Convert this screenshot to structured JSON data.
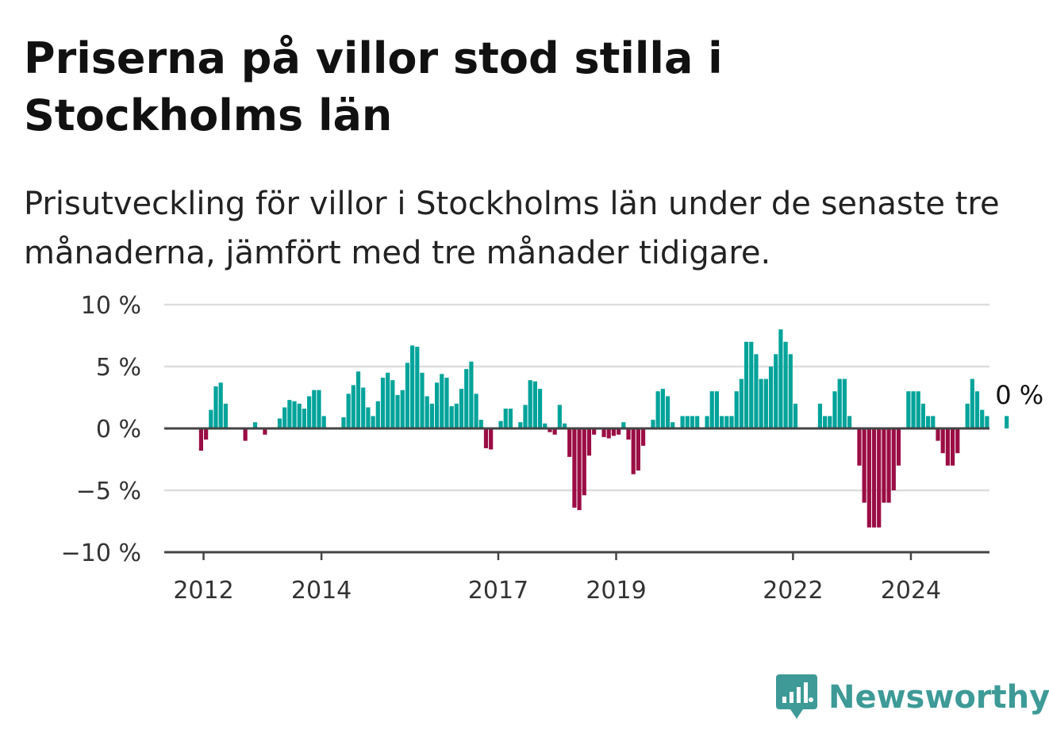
{
  "title": "Priserna på villor stod stilla i Stockholms län",
  "subtitle": "Prisutveckling för villor i Stockholms län under de senaste tre månaderna, jämfört med tre månader tidigare.",
  "brand": {
    "name": "Newsworthy",
    "color": "#3d9a97",
    "icon": "chart-bubble-icon"
  },
  "colors": {
    "positive": "#00a39a",
    "negative": "#9b0d44",
    "grid": "#dddddd",
    "zero_line": "#444444"
  },
  "chart_data": {
    "type": "bar",
    "ylim": [
      -10,
      10
    ],
    "y_ticks": [
      10,
      5,
      0,
      -5,
      -10
    ],
    "y_tick_labels": [
      "10 %",
      "5 %",
      "0 %",
      "−5 %",
      "−10 %"
    ],
    "x_ticks": [
      "2012",
      "2014",
      "2017",
      "2019",
      "2022",
      "2024"
    ],
    "start": "2011-05",
    "end": "2025-05",
    "annotation": "0 %",
    "values": [
      0,
      0,
      0,
      0,
      0,
      0,
      0,
      -1.8,
      -0.9,
      1.5,
      3.4,
      3.7,
      2.0,
      0,
      0,
      0,
      -1.0,
      0,
      0.5,
      0,
      -0.5,
      0,
      0,
      0.8,
      1.7,
      2.3,
      2.2,
      2.0,
      1.6,
      2.6,
      3.1,
      3.1,
      1.0,
      0,
      0,
      0,
      0.9,
      2.8,
      3.5,
      4.6,
      3.3,
      1.7,
      1.0,
      2.2,
      4.1,
      4.5,
      3.9,
      2.7,
      3.1,
      5.3,
      6.7,
      6.6,
      4.5,
      2.6,
      2.0,
      3.7,
      4.4,
      4.1,
      1.8,
      2.0,
      3.2,
      4.8,
      5.4,
      2.8,
      0.7,
      -1.6,
      -1.7,
      0,
      0.6,
      1.6,
      1.6,
      0,
      0.5,
      1.9,
      3.9,
      3.8,
      3.2,
      0.4,
      -0.3,
      -0.5,
      1.9,
      0.4,
      -2.3,
      -6.4,
      -6.6,
      -5.4,
      -2.2,
      -0.5,
      0,
      -0.7,
      -0.8,
      -0.6,
      -0.5,
      0.5,
      -0.9,
      -3.7,
      -3.4,
      -1.4,
      0,
      0.7,
      3.0,
      3.2,
      2.6,
      0.5,
      0,
      1.0,
      1.0,
      1.0,
      1.0,
      0,
      1.0,
      3.0,
      3.0,
      1.0,
      1.0,
      1.0,
      3.0,
      4.0,
      7.0,
      7.0,
      6.0,
      4.0,
      4.0,
      5.0,
      6.0,
      8.0,
      7.0,
      6.0,
      2.0,
      0,
      0,
      0,
      0,
      2.0,
      1.0,
      1.0,
      3.0,
      4.0,
      4.0,
      1.0,
      0,
      -3.0,
      -6.0,
      -8.0,
      -8.0,
      -8.0,
      -6.0,
      -6.0,
      -5.0,
      -3.0,
      0,
      3.0,
      3.0,
      3.0,
      2.0,
      1.0,
      1.0,
      -1.0,
      -2.0,
      -3.0,
      -3.0,
      -2.0,
      0,
      2.0,
      4.0,
      3.0,
      1.5,
      1.0,
      0,
      0,
      0,
      1.0,
      0,
      0,
      0,
      0,
      0,
      0
    ]
  }
}
